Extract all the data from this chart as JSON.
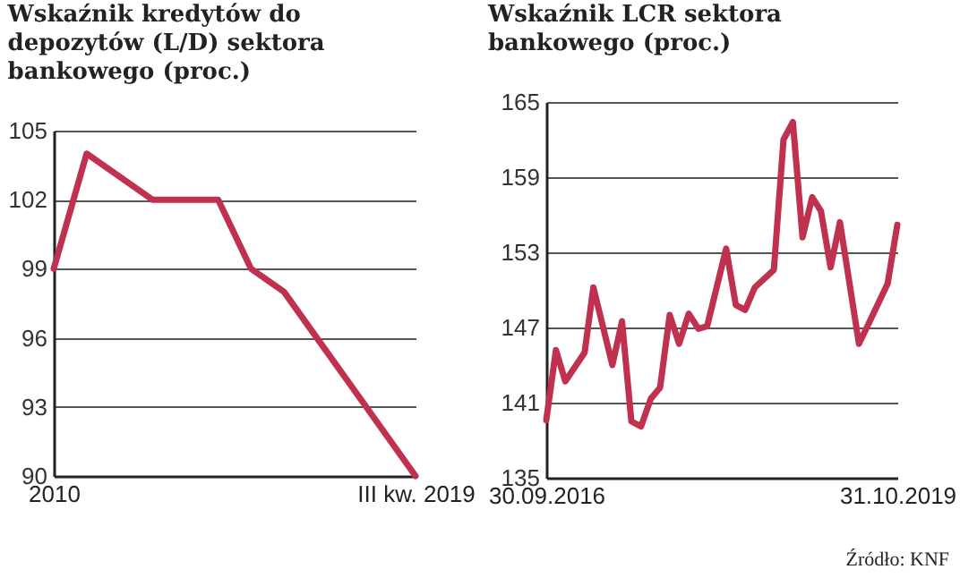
{
  "chart_data": [
    {
      "type": "line",
      "title": "Wskaźnik kredytów do depozytów (L/D) sektora bankowego (proc.)",
      "categories": [
        "2010",
        null,
        null,
        null,
        null,
        null,
        null,
        null,
        null,
        null,
        null,
        "III kw. 2019"
      ],
      "series": [
        {
          "color": "#c0304f",
          "values": [
            99,
            104,
            103,
            102,
            102,
            102,
            99,
            98,
            96,
            94,
            92,
            90
          ]
        }
      ],
      "ylim": [
        90,
        105
      ],
      "yticks": [
        90,
        93,
        96,
        99,
        102,
        105
      ],
      "grid": "y",
      "marker": "none",
      "line_style": "solid"
    },
    {
      "type": "line",
      "title": "Wskaźnik LCR sektora bankowego (proc.)",
      "x": [
        "2016-09-30",
        "2016-10-31",
        "2016-11-30",
        "2017-01-31",
        "2017-02-28",
        "2017-04-30",
        "2017-05-31",
        "2017-06-30",
        "2017-07-31",
        "2017-08-31",
        "2017-09-30",
        "2017-10-31",
        "2017-11-30",
        "2017-12-31",
        "2018-01-31",
        "2018-02-28",
        "2018-04-30",
        "2018-05-31",
        "2018-06-30",
        "2018-07-31",
        "2018-09-30",
        "2018-10-31",
        "2018-11-30",
        "2018-12-31",
        "2019-01-31",
        "2019-02-28",
        "2019-03-31",
        "2019-04-30",
        "2019-06-30",
        "2019-07-31",
        "2019-09-30",
        "2019-10-31"
      ],
      "series": [
        {
          "color": "#c0304f",
          "values": [
            139.6,
            145.2,
            142.7,
            145.0,
            150.2,
            144.0,
            147.5,
            139.5,
            139.1,
            141.3,
            142.2,
            148.0,
            145.7,
            148.1,
            146.9,
            147.1,
            153.3,
            148.8,
            148.4,
            150.2,
            151.6,
            162.0,
            163.4,
            154.2,
            157.4,
            156.3,
            151.8,
            155.4,
            145.7,
            147.3,
            150.5,
            155.2
          ]
        }
      ],
      "xlim": [
        "2016-09-30",
        "2019-10-31"
      ],
      "xticks": [
        {
          "value": "2016-09-30",
          "label": "30.09.2016"
        },
        {
          "value": "2019-10-31",
          "label": "31.10.2019"
        }
      ],
      "ylim": [
        135,
        165
      ],
      "yticks": [
        135,
        141,
        147,
        153,
        159,
        165
      ],
      "grid": "y",
      "marker": "none",
      "line_style": "solid",
      "annotations": [
        "Źródło: KNF"
      ]
    }
  ]
}
